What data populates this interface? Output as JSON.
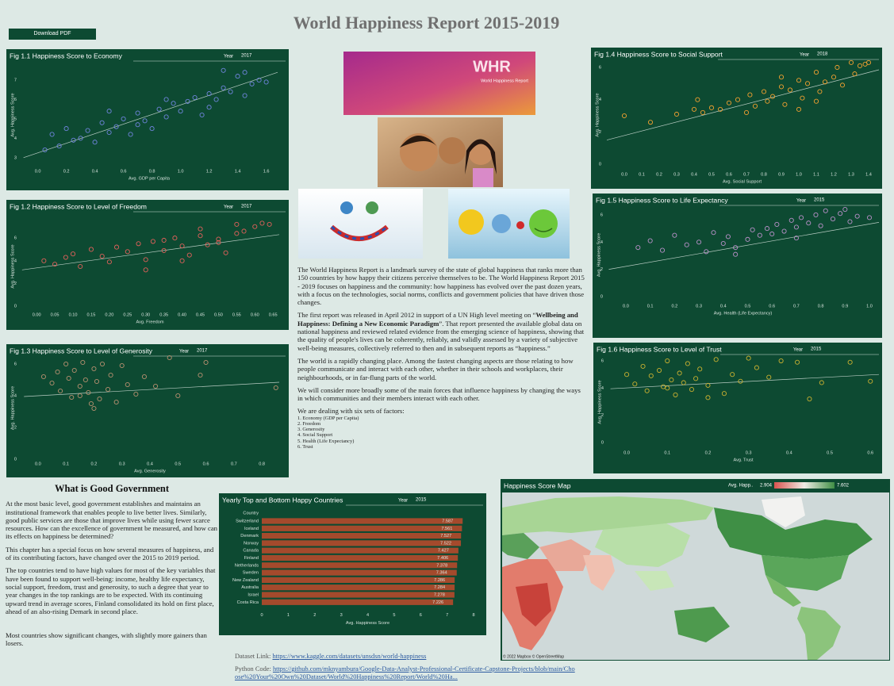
{
  "header": {
    "title": "World Happiness Report 2015-2019",
    "download": "Download PDF"
  },
  "logo": {
    "mark": "WHR",
    "caption": "World Happiness Report"
  },
  "intro": {
    "p1": "The World Happiness Report is a landmark survey of the state of global happiness that ranks more than 150 countries by how happy their citizens perceive themselves to be. The World Happiness Report 2015 - 2019 focuses on happiness and the community: how happiness has evolved over the past dozen years, with a focus on the technologies, social norms, conflicts and government policies that have driven those changes.",
    "p2": [
      "The first report was released in April 2012 in support of a UN High level meeting on “",
      "Wellbeing and Happiness: Defining a New Economic Paradigm",
      "”. That report presented the available global data on national happiness and reviewed related evidence from the emerging science of happiness, showing that the quality of people's lives can be coherently, reliably, and validly assessed by a variety of subjective well-being measures, collectively referred to then and in subsequent reports as “happiness.”"
    ],
    "p3": "The world is a rapidly changing place. Among the fastest changing aspects are those relating to how people communicate and interact with each other, whether in their schools and workplaces, their neighbourhoods, or in far-flung parts of the world.",
    "p4": "We will consider more broadly some of the main forces that influence happiness by changing the ways in which communities and their members interact with each other.",
    "p5": "We are dealing with six sets of factors:",
    "factors": [
      "1. Economy (GDP per Capita)",
      "2. Freedom",
      "3. Generosity",
      "4. Social Support",
      "5. Health (Life Expectancy)",
      "6. Trust"
    ]
  },
  "government": {
    "heading": "What is Good Government",
    "paragraphs": [
      "At the most basic level, good government establishes and maintains an institutional framework that enables people to live better lives. Similarly, good public services are those that improve lives while using fewer scarce resources. How can the excellence of government be measured, and how can its effects on happiness be determined?",
      "This chapter has a special focus on how several measures of happiness, and of its contributing factors, have changed over the 2015 to 2019 period.",
      "The top countries tend to have high values for most of the key variables that have been found to support well-being: income, healthy life expectancy, social support, freedom, trust and generosity, to such a degree that year to year changes in the top rankings are to be expected. With its continuing upward trend in average scores, Finland consolidated its hold on first place, ahead of an also-rising Demark in second place.",
      "Most countries show significant changes, with slightly more gainers than losers."
    ]
  },
  "links": {
    "dataset_label": "Dataset Link:",
    "dataset_url": "https://www.kaggle.com/datasets/unsdsn/world-happiness",
    "code_label": "Python Code:",
    "code_url": "https://github.com/mknyambura/Google-Data-Analyst-Professional-Certificate-Capstone-Projects/blob/main/Choose%20Your%20Own%20Dataset/World%20Happiness%20Report/World%20Ha..."
  },
  "chart_data": [
    {
      "type": "scatter",
      "title": "Fig 1.1 Happiness Score to Economy",
      "year_label": "Year",
      "year": 2017,
      "x_label": "Avg. GDP per Capita",
      "y_label": "Avg. Happiness Score",
      "color": "#6f84dc",
      "x": [
        0.05,
        0.1,
        0.15,
        0.2,
        0.25,
        0.3,
        0.35,
        0.4,
        0.45,
        0.5,
        0.55,
        0.6,
        0.65,
        0.7,
        0.75,
        0.8,
        0.85,
        0.9,
        0.95,
        1.0,
        1.05,
        1.1,
        1.15,
        1.2,
        1.25,
        1.3,
        1.35,
        1.4,
        1.45,
        1.5,
        1.55,
        1.6,
        0.5,
        0.9,
        1.3,
        1.45,
        0.7,
        1.2
      ],
      "values": [
        3.4,
        4.2,
        3.6,
        4.5,
        3.9,
        4.0,
        4.4,
        3.8,
        4.8,
        4.3,
        4.6,
        5.0,
        4.2,
        5.3,
        4.9,
        4.5,
        5.5,
        5.1,
        5.8,
        5.4,
        5.9,
        6.1,
        5.2,
        6.3,
        6.0,
        6.6,
        6.4,
        7.2,
        7.4,
        6.8,
        7.0,
        6.9,
        5.4,
        6.0,
        7.5,
        6.2,
        4.7,
        5.6
      ],
      "trend": {
        "x": [
          -0.1,
          1.68
        ],
        "values": [
          3.0,
          7.4
        ]
      },
      "xlim": [
        -0.12,
        1.68
      ],
      "ylim": [
        2.5,
        7.9
      ],
      "xticks": [
        {
          "value": 0,
          "label": "0.0"
        },
        0.2,
        0.4,
        0.6,
        0.8,
        {
          "value": 1,
          "label": "1.0"
        },
        1.2,
        1.4,
        1.6
      ],
      "yticks": [
        3,
        4,
        5,
        6,
        7
      ]
    },
    {
      "type": "scatter",
      "title": "Fig 1.2 Happiness Score to Level of Freedom",
      "year_label": "Year",
      "year": 2017,
      "x_label": "Avg. Freedom",
      "y_label": "Avg. Happiness Score",
      "color": "#e0605a",
      "x": [
        0.02,
        0.05,
        0.08,
        0.1,
        0.12,
        0.15,
        0.18,
        0.2,
        0.22,
        0.25,
        0.28,
        0.3,
        0.32,
        0.35,
        0.38,
        0.4,
        0.42,
        0.45,
        0.47,
        0.5,
        0.52,
        0.55,
        0.57,
        0.6,
        0.62,
        0.64,
        0.3,
        0.4,
        0.5,
        0.55,
        0.45,
        0.35
      ],
      "values": [
        4.0,
        3.7,
        4.3,
        4.6,
        3.5,
        5.0,
        4.4,
        3.9,
        5.2,
        4.8,
        5.5,
        4.1,
        5.7,
        4.9,
        6.0,
        5.3,
        4.5,
        6.2,
        5.4,
        5.9,
        4.7,
        6.4,
        6.6,
        7.0,
        7.3,
        7.2,
        3.2,
        4.0,
        5.6,
        7.2,
        6.8,
        5.8
      ],
      "trend": {
        "x": [
          -0.04,
          0.667
        ],
        "values": [
          3.2,
          6.3
        ]
      },
      "xlim": [
        -0.044,
        0.667
      ],
      "ylim": [
        -0.4,
        7.4
      ],
      "xticks": [
        {
          "value": 0,
          "label": "0.00"
        },
        0.05,
        {
          "value": 0.1,
          "label": "0.10"
        },
        0.15,
        {
          "value": 0.2,
          "label": "0.20"
        },
        0.25,
        {
          "value": 0.3,
          "label": "0.30"
        },
        0.35,
        {
          "value": 0.4,
          "label": "0.40"
        },
        0.45,
        {
          "value": 0.5,
          "label": "0.50"
        },
        0.55,
        {
          "value": 0.6,
          "label": "0.60"
        },
        0.65
      ],
      "yticks": [
        0,
        2,
        4,
        6
      ]
    },
    {
      "type": "scatter",
      "title": "Fig 1.3 Happiness Score to Level of Generosity",
      "year_label": "Year",
      "year": 2017,
      "x_label": "Avg. Generosity",
      "y_label": "Avg. Happiness Score",
      "color": "#b89070",
      "x": [
        0.02,
        0.05,
        0.07,
        0.08,
        0.1,
        0.11,
        0.12,
        0.13,
        0.15,
        0.16,
        0.17,
        0.18,
        0.19,
        0.2,
        0.21,
        0.22,
        0.23,
        0.25,
        0.26,
        0.28,
        0.3,
        0.32,
        0.35,
        0.38,
        0.42,
        0.47,
        0.5,
        0.58,
        0.6,
        0.85,
        0.15,
        0.2
      ],
      "values": [
        5.2,
        4.8,
        5.5,
        4.3,
        6.0,
        5.1,
        3.9,
        5.6,
        4.6,
        6.1,
        5.0,
        4.2,
        3.5,
        5.7,
        4.9,
        3.8,
        6.0,
        4.4,
        5.3,
        3.6,
        5.9,
        4.7,
        4.1,
        5.2,
        4.6,
        6.4,
        4.0,
        5.3,
        6.1,
        4.5,
        4.0,
        3.2
      ],
      "trend": {
        "x": [
          -0.05,
          0.862
        ],
        "values": [
          3.95,
          4.85
        ]
      },
      "xlim": [
        -0.062,
        0.862
      ],
      "ylim": [
        -0.05,
        6.5
      ],
      "xticks": [
        {
          "value": 0,
          "label": "0.0"
        },
        0.1,
        0.2,
        0.3,
        0.4,
        0.5,
        0.6,
        0.7,
        0.8
      ],
      "yticks": [
        0,
        2,
        4,
        6
      ]
    },
    {
      "type": "scatter",
      "title": "Fig 1.4 Happiness Score to Social Support",
      "year_label": "Year",
      "year": 2018,
      "x_label": "Avg. Social Support",
      "y_label": "Avg. Happiness Score",
      "color": "#f0a030",
      "x": [
        0.0,
        0.15,
        0.3,
        0.4,
        0.42,
        0.45,
        0.5,
        0.55,
        0.6,
        0.65,
        0.7,
        0.72,
        0.75,
        0.8,
        0.82,
        0.85,
        0.9,
        0.92,
        0.95,
        1.0,
        1.02,
        1.05,
        1.1,
        1.12,
        1.15,
        1.2,
        1.22,
        1.25,
        1.3,
        1.32,
        1.35,
        1.38,
        1.4,
        1.0,
        1.1,
        0.9
      ],
      "values": [
        3.0,
        2.6,
        3.1,
        3.4,
        4.0,
        3.2,
        3.5,
        3.4,
        3.8,
        4.0,
        3.2,
        4.3,
        3.6,
        4.5,
        3.9,
        4.2,
        4.8,
        3.7,
        4.6,
        5.2,
        4.1,
        5.0,
        5.7,
        4.5,
        5.1,
        5.4,
        6.0,
        4.9,
        6.3,
        5.6,
        6.1,
        6.2,
        6.3,
        3.4,
        3.9,
        5.4
      ],
      "trend": {
        "x": [
          -0.1,
          1.459
        ],
        "values": [
          1.5,
          5.85
        ]
      },
      "xlim": [
        -0.109,
        1.459
      ],
      "ylim": [
        -0.39,
        6.49
      ],
      "xticks": [
        {
          "value": 0,
          "label": "0.0"
        },
        0.1,
        0.2,
        0.3,
        0.4,
        0.5,
        0.6,
        0.7,
        0.8,
        0.9,
        {
          "value": 1,
          "label": "1.0"
        },
        1.1,
        1.2,
        1.3,
        1.4
      ],
      "yticks": [
        0,
        2,
        4,
        6
      ]
    },
    {
      "type": "scatter",
      "title": "Fig 1.5 Happiness Score to Life Expectancy",
      "year_label": "Year",
      "year": 2015,
      "x_label": "Avg. Health (Life Expectancy)",
      "y_label": "Avg. Happiness Score",
      "color": "#b890c8",
      "x": [
        0.05,
        0.1,
        0.15,
        0.2,
        0.25,
        0.3,
        0.33,
        0.36,
        0.4,
        0.42,
        0.45,
        0.5,
        0.52,
        0.55,
        0.58,
        0.6,
        0.62,
        0.65,
        0.68,
        0.7,
        0.72,
        0.75,
        0.78,
        0.8,
        0.82,
        0.85,
        0.88,
        0.9,
        0.92,
        0.95,
        1.0,
        0.45,
        0.7
      ],
      "values": [
        3.6,
        4.1,
        3.4,
        4.5,
        3.8,
        4.0,
        3.3,
        4.7,
        3.9,
        4.4,
        3.6,
        4.2,
        4.9,
        4.5,
        5.0,
        4.6,
        5.3,
        4.8,
        5.6,
        5.1,
        5.8,
        5.4,
        6.0,
        5.2,
        6.3,
        5.7,
        6.1,
        6.4,
        5.5,
        5.9,
        5.8,
        3.1,
        4.3
      ],
      "trend": {
        "x": [
          -0.07,
          1.039
        ],
        "values": [
          2.0,
          5.45
        ]
      },
      "xlim": [
        -0.078,
        1.039
      ],
      "ylim": [
        -0.41,
        6.52
      ],
      "xticks": [
        {
          "value": 0,
          "label": "0.0"
        },
        0.1,
        0.2,
        0.3,
        0.4,
        0.5,
        0.6,
        0.7,
        0.8,
        0.9,
        {
          "value": 1,
          "label": "1.0"
        }
      ],
      "yticks": [
        0,
        2,
        4,
        6
      ]
    },
    {
      "type": "scatter",
      "title": "Fig 1.6 Happiness Score to Level of Trust",
      "year_label": "Year",
      "year": 2015,
      "x_label": "Avg. Trust",
      "y_label": "Avg. Happiness Score",
      "color": "#c9b030",
      "x": [
        0.0,
        0.02,
        0.04,
        0.05,
        0.06,
        0.08,
        0.09,
        0.1,
        0.11,
        0.12,
        0.13,
        0.14,
        0.15,
        0.16,
        0.17,
        0.18,
        0.2,
        0.22,
        0.24,
        0.26,
        0.28,
        0.3,
        0.32,
        0.35,
        0.38,
        0.42,
        0.45,
        0.48,
        0.55,
        0.6,
        0.1,
        0.2
      ],
      "values": [
        5.0,
        4.3,
        5.6,
        3.8,
        4.9,
        5.3,
        4.1,
        6.0,
        4.6,
        3.5,
        5.1,
        4.4,
        5.8,
        3.9,
        4.7,
        5.4,
        4.2,
        6.1,
        3.6,
        5.0,
        4.5,
        6.2,
        5.5,
        4.8,
        6.0,
        5.9,
        3.2,
        4.4,
        5.9,
        4.5,
        4.0,
        3.3
      ],
      "trend": {
        "x": [
          -0.04,
          0.621
        ],
        "values": [
          3.95,
          5.0
        ]
      },
      "xlim": [
        -0.047,
        0.621
      ],
      "ylim": [
        -0.47,
        6.41
      ],
      "xticks": [
        {
          "value": 0,
          "label": "0.0"
        },
        0.1,
        0.2,
        0.3,
        0.4,
        0.5,
        0.6
      ],
      "yticks": [
        0,
        2,
        4,
        6
      ]
    },
    {
      "type": "bar",
      "title": "Yearly Top and Bottom Happy Countries",
      "year_label": "Year",
      "year": 2015,
      "category_header": "Country",
      "x_label": "Avg. Happiness Score",
      "color": "#a44a2c",
      "categories": [
        "Switzerland",
        "Iceland",
        "Denmark",
        "Norway",
        "Canada",
        "Finland",
        "Netherlands",
        "Sweden",
        "New Zealand",
        "Australia",
        "Israel",
        "Costa Rica"
      ],
      "values": [
        7.587,
        7.561,
        7.527,
        7.522,
        7.427,
        7.406,
        7.378,
        7.364,
        7.286,
        7.284,
        7.278,
        7.226
      ],
      "xlim": [
        0,
        8
      ],
      "xticks": [
        0,
        1,
        2,
        3,
        4,
        5,
        6,
        7,
        8
      ]
    },
    {
      "type": "map",
      "title": "Happiness Score Map",
      "legend_title": "Avg. Happ..",
      "legend_min": 2.904,
      "legend_max": 7.602,
      "legend_colors": [
        "#d9534f",
        "#f0ece6",
        "#3f8f45"
      ],
      "credit": "© 2022 Mapbox © OpenStreetMap"
    }
  ]
}
